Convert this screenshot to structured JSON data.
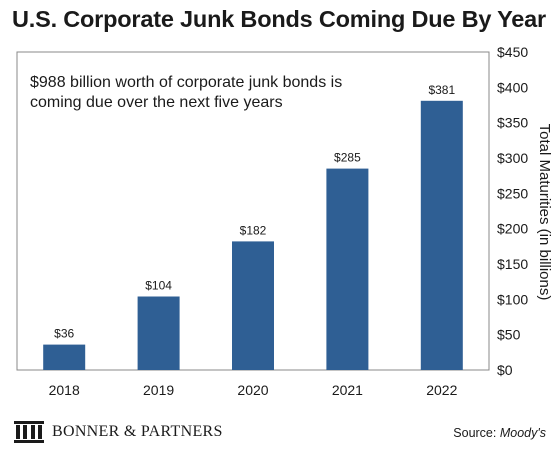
{
  "title": "U.S. Corporate Junk Bonds Coming Due By Year",
  "annotation_lines": [
    "$988 billion worth of corporate junk bonds is",
    "coming due over the next five years"
  ],
  "brand": {
    "name": "BONNER & PARTNERS",
    "logo_icon": "building-columns-icon"
  },
  "source": {
    "prefix": "Source: ",
    "name": "Moody's"
  },
  "colors": {
    "bar": "#2f5f94",
    "axis": "#888888",
    "text": "#1a1a1a"
  },
  "chart_data": {
    "type": "bar",
    "categories": [
      "2018",
      "2019",
      "2020",
      "2021",
      "2022"
    ],
    "values": [
      36,
      104,
      182,
      285,
      381
    ],
    "value_labels": [
      "$36",
      "$104",
      "$182",
      "$285",
      "$381"
    ],
    "title": "U.S. Corporate Junk Bonds Coming Due By Year",
    "xlabel": "",
    "ylabel": "Total Maturities (in billions)",
    "ylim": [
      0,
      450
    ],
    "yticks": [
      0,
      50,
      100,
      150,
      200,
      250,
      300,
      350,
      400,
      450
    ],
    "ytick_labels": [
      "$0",
      "$50",
      "$100",
      "$150",
      "$200",
      "$250",
      "$300",
      "$350",
      "$400",
      "$450"
    ],
    "y_axis_side": "right",
    "grid": false,
    "legend": "none"
  }
}
